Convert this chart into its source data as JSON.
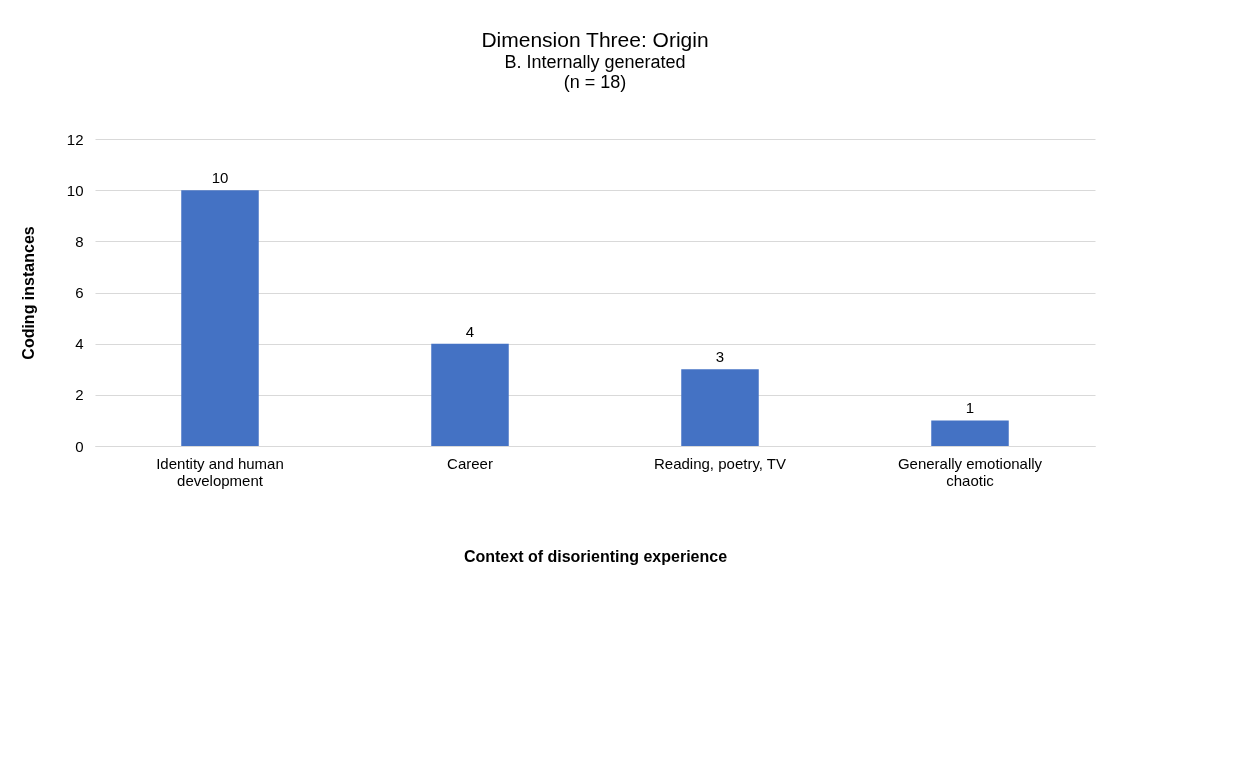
{
  "chart_data": {
    "type": "bar",
    "title": "Dimension Three: Origin",
    "subtitle": "B. Internally generated\n(n = 18)",
    "xlabel": "Context of disorienting experience",
    "ylabel": "Coding instances",
    "categories": [
      "Identity and human development",
      "Career",
      "Reading, poetry, TV",
      "Generally emotionally chaotic"
    ],
    "values": [
      10,
      4,
      3,
      1
    ],
    "color": "#4472c4",
    "ylim": [
      0,
      12
    ],
    "yticks": [
      0,
      2,
      4,
      6,
      8,
      10,
      12
    ],
    "grid": "y",
    "data_labels": true
  }
}
